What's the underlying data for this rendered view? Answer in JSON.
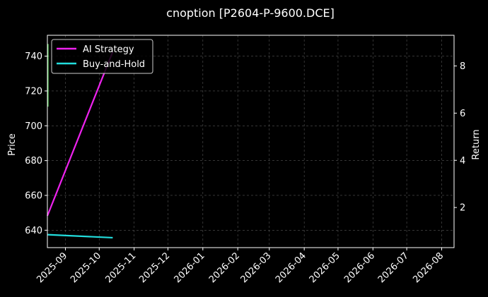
{
  "chart_data": {
    "type": "line",
    "title": "cnoption [P2604-P-9600.DCE]",
    "xlabel": "",
    "ylabel": "Price",
    "y2label": "Return",
    "xlim": [
      "2025-08-16",
      "2026-08-12"
    ],
    "ylim": [
      630,
      752
    ],
    "y2lim": [
      0.3,
      9.3
    ],
    "x_ticks": [
      "2025-09",
      "2025-10",
      "2025-11",
      "2025-12",
      "2026-01",
      "2026-02",
      "2026-03",
      "2026-04",
      "2026-05",
      "2026-06",
      "2026-07",
      "2026-08"
    ],
    "y_ticks": [
      640,
      660,
      680,
      700,
      720,
      740
    ],
    "y2_ticks": [
      2,
      4,
      6,
      8
    ],
    "grid": true,
    "legend": "top-left",
    "colors": {
      "background": "#000000",
      "price": "#66dd66",
      "ai_strategy": "#ee22ee",
      "buy_and_hold": "#22dddd",
      "grid": "#555555",
      "text": "#ffffff"
    },
    "series": [
      {
        "name": "AI Strategy",
        "axis": "right",
        "x": [
          "2025-08-16",
          "2025-10-13"
        ],
        "y": [
          1.65,
          8.6
        ]
      },
      {
        "name": "Buy-and-Hold",
        "axis": "right",
        "x": [
          "2025-08-16",
          "2025-10-13"
        ],
        "y": [
          0.85,
          0.72
        ]
      }
    ],
    "price_series": {
      "axis": "left",
      "x": [
        "2025-08-16",
        "2025-08-16"
      ],
      "y": [
        711,
        747
      ]
    }
  }
}
